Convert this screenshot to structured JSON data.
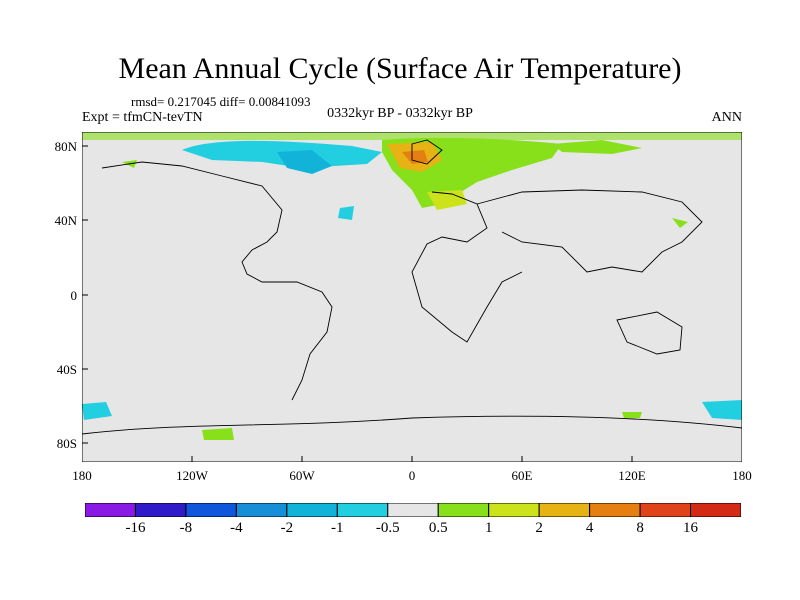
{
  "title": "Mean Annual Cycle (Surface Air Temperature)",
  "stats": "rmsd= 0.217045 diff= 0.00841093",
  "experiment": "Expt = tfmCN-tevTN",
  "period": "0332kyr BP - 0332kyr BP",
  "season": "ANN",
  "lat_labels": [
    "80N",
    "40N",
    "0",
    "40S",
    "80S"
  ],
  "lon_labels": [
    "180",
    "120W",
    "60W",
    "0",
    "60E",
    "120E",
    "180"
  ],
  "colorbar": {
    "labels": [
      "-16",
      "-8",
      "-4",
      "-2",
      "-1",
      "-0.5",
      "0.5",
      "1",
      "2",
      "4",
      "8",
      "16"
    ],
    "colors": [
      "#8b19e6",
      "#2f1cc8",
      "#0f56dc",
      "#178ed8",
      "#12b3d9",
      "#22cfe0",
      "#e6e6e6",
      "#88e01a",
      "#cce21a",
      "#e6b214",
      "#e67f12",
      "#e0431a",
      "#d22a14"
    ]
  },
  "colors": {
    "background_field": "#e6e6e6",
    "coast": "#000000"
  }
}
